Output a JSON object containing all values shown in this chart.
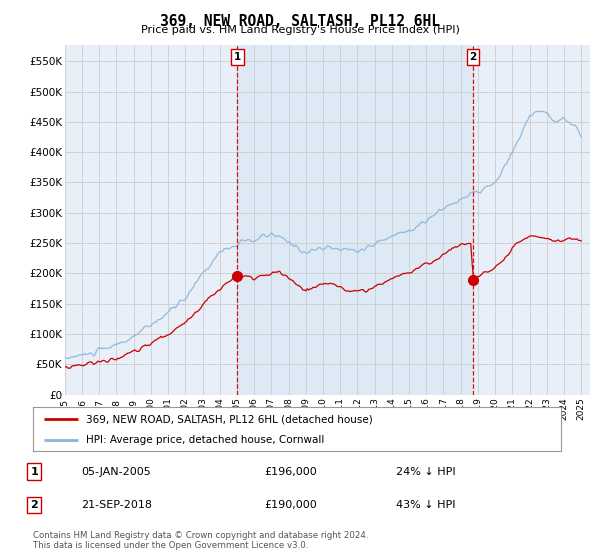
{
  "title": "369, NEW ROAD, SALTASH, PL12 6HL",
  "subtitle": "Price paid vs. HM Land Registry's House Price Index (HPI)",
  "legend_line1": "369, NEW ROAD, SALTASH, PL12 6HL (detached house)",
  "legend_line2": "HPI: Average price, detached house, Cornwall",
  "transaction1_label": "1",
  "transaction1_date": "05-JAN-2005",
  "transaction1_price": "£196,000",
  "transaction1_hpi": "24% ↓ HPI",
  "transaction2_label": "2",
  "transaction2_date": "21-SEP-2018",
  "transaction2_price": "£190,000",
  "transaction2_hpi": "43% ↓ HPI",
  "footnote": "Contains HM Land Registry data © Crown copyright and database right 2024.\nThis data is licensed under the Open Government Licence v3.0.",
  "hpi_color": "#8ab4d8",
  "price_paid_color": "#cc0000",
  "vline_color": "#cc0000",
  "shade_color": "#dce8f5",
  "background_color": "#ffffff",
  "grid_color": "#cccccc",
  "ylim": [
    0,
    577000
  ],
  "yticks": [
    0,
    50000,
    100000,
    150000,
    200000,
    250000,
    300000,
    350000,
    400000,
    450000,
    500000,
    550000
  ],
  "xlim_start": 1995.0,
  "xlim_end": 2025.5,
  "transaction1_x": 2005.03,
  "transaction2_x": 2018.72,
  "transaction1_y": 196000,
  "transaction2_y": 190000
}
